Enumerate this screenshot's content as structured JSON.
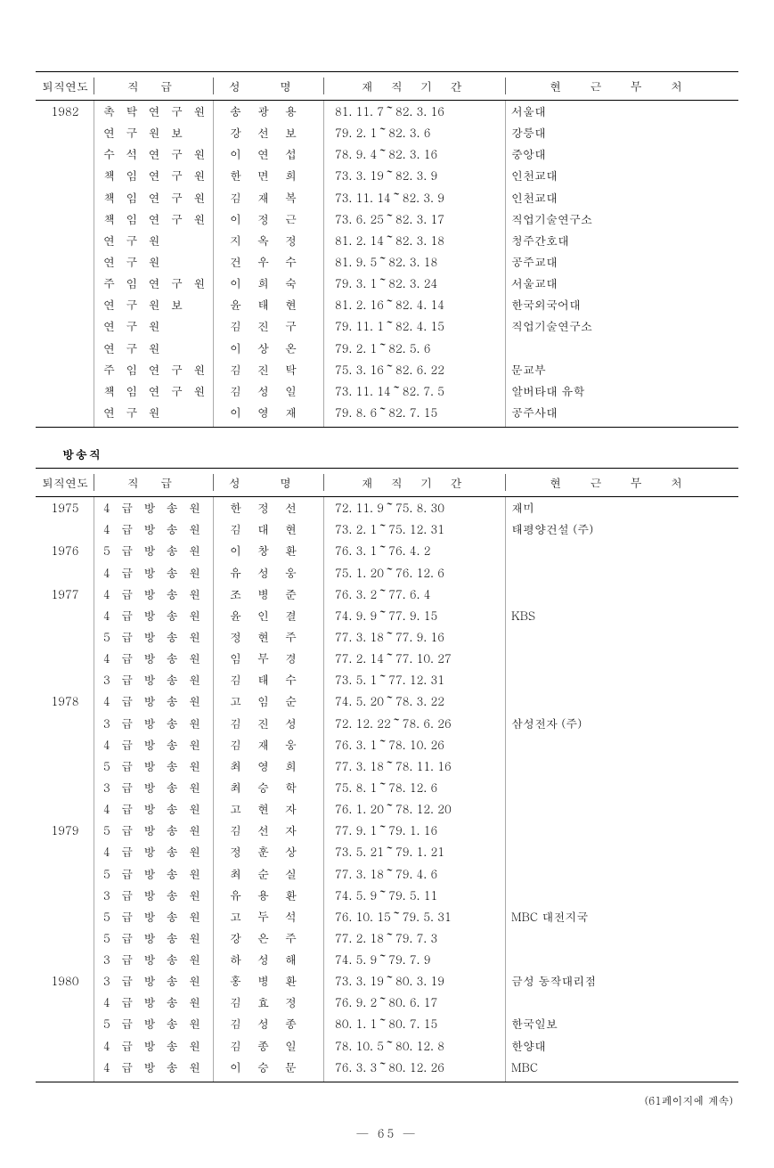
{
  "headers": {
    "year": "퇴직연도",
    "rank": "직    급",
    "name": "성    명",
    "period": "재 직 기 간",
    "place": "현  근  무  처"
  },
  "section2_label": "방송직",
  "footer_note": "(61페이지에 계속)",
  "page_number": "— 65 —",
  "table1": [
    {
      "year": "1982",
      "rank": "촉 탁 연 구 원",
      "name": "송광용",
      "period": "81. 11.  7～82.  3. 16",
      "place": "서울대"
    },
    {
      "year": "",
      "rank": "연 구 원 보",
      "name": "강선보",
      "period": "79.  2.  1～82.  3.  6",
      "place": "강릉대"
    },
    {
      "year": "",
      "rank": "수 석 연 구 원",
      "name": "이연섭",
      "period": "78.  9.  4～82.  3. 16",
      "place": "중앙대"
    },
    {
      "year": "",
      "rank": "책 임 연 구 원",
      "name": "한면희",
      "period": "73.  3. 19～82.  3.  9",
      "place": "인천교대"
    },
    {
      "year": "",
      "rank": "책 임 연 구 원",
      "name": "김재복",
      "period": "73. 11. 14～82.  3.  9",
      "place": "인천교대"
    },
    {
      "year": "",
      "rank": "책 임 연 구 원",
      "name": "이정근",
      "period": "73.  6. 25～82.  3. 17",
      "place": "직업기술연구소"
    },
    {
      "year": "",
      "rank": "연  구  원",
      "name": "지옥정",
      "period": "81.  2. 14～82.  3. 18",
      "place": "청주간호대"
    },
    {
      "year": "",
      "rank": "연  구  원",
      "name": "건우수",
      "period": "81.  9.  5～82.  3. 18",
      "place": "공주교대"
    },
    {
      "year": "",
      "rank": "주 임 연 구 원",
      "name": "이희숙",
      "period": "79.  3.  1～82.  3. 24",
      "place": "서울교대"
    },
    {
      "year": "",
      "rank": "연 구 원 보",
      "name": "윤태현",
      "period": "81.  2. 16～82.  4. 14",
      "place": "한국외국어대"
    },
    {
      "year": "",
      "rank": "연  구  원",
      "name": "김진구",
      "period": "79. 11.  1～82.  4. 15",
      "place": "직업기술연구소"
    },
    {
      "year": "",
      "rank": "연  구  원",
      "name": "이상온",
      "period": "79.  2.  1～82.  5.  6",
      "place": ""
    },
    {
      "year": "",
      "rank": "주 임 연 구 원",
      "name": "김진탁",
      "period": "75.  3. 16～82.  6. 22",
      "place": "문교부"
    },
    {
      "year": "",
      "rank": "책 임 연 구 원",
      "name": "김성일",
      "period": "73. 11. 14～82.  7.  5",
      "place": "알버타대 유학"
    },
    {
      "year": "",
      "rank": "연  구  원",
      "name": "이영재",
      "period": "79.  8.  6～82.  7. 15",
      "place": "공주사대"
    }
  ],
  "table2": [
    {
      "year": "1975",
      "rank": "4 급 방 송 원",
      "name": "한정선",
      "period": "72. 11.  9～75.  8. 30",
      "place": "재미"
    },
    {
      "year": "",
      "rank": "4 급 방 송 원",
      "name": "김대현",
      "period": "73.  2.  1～75. 12. 31",
      "place": "태평양건설 (주)"
    },
    {
      "year": "1976",
      "rank": "5 급 방 송 원",
      "name": "이창환",
      "period": "76.  3.  1～76.  4.  2",
      "place": "",
      "bullet": true
    },
    {
      "year": "",
      "rank": "4 급 방 송 원",
      "name": "유성웅",
      "period": "75.  1. 20～76. 12.  6",
      "place": ""
    },
    {
      "year": "1977",
      "rank": "4 급 방 송 원",
      "name": "조병준",
      "period": "76.  3.  2～77.  6.  4",
      "place": ""
    },
    {
      "year": "",
      "rank": "4 급 방 송 원",
      "name": "윤인결",
      "period": "74.  9.  9～77.  9. 15",
      "place": "KBS"
    },
    {
      "year": "",
      "rank": "5 급 방 송 원",
      "name": "정현주",
      "period": "77.  3. 18～77.  9. 16",
      "place": ""
    },
    {
      "year": "",
      "rank": "4 급 방 송 원",
      "name": "임무경",
      "period": "77.  2. 14～77. 10. 27",
      "place": ""
    },
    {
      "year": "",
      "rank": "3 급 방 송 원",
      "name": "김태수",
      "period": "73.  5.  1～77. 12. 31",
      "place": ""
    },
    {
      "year": "1978",
      "rank": "4 급 방 송 원",
      "name": "고임순",
      "period": "74.  5. 20～78.  3. 22",
      "place": ""
    },
    {
      "year": "",
      "rank": "3 급 방 송 원",
      "name": "김진성",
      "period": "72. 12. 22～78.  6. 26",
      "place": "삼성전자 (주)"
    },
    {
      "year": "",
      "rank": "4 급 방 송 원",
      "name": "김재웅",
      "period": "76.  3.  1～78. 10. 26",
      "place": ""
    },
    {
      "year": "",
      "rank": "5 급 방 송 원",
      "name": "최영희",
      "period": "77.  3. 18～78. 11. 16",
      "place": ""
    },
    {
      "year": "",
      "rank": "3 급 방 송 원",
      "name": "최승학",
      "period": "75.  8.  1～78. 12.  6",
      "place": ""
    },
    {
      "year": "",
      "rank": "4 급 방 송 원",
      "name": "고현자",
      "period": "76.  1. 20～78. 12. 20",
      "place": ""
    },
    {
      "year": "1979",
      "rank": "5 급 방 송 원",
      "name": "김선자",
      "period": "77.  9.  1～79.  1. 16",
      "place": ""
    },
    {
      "year": "",
      "rank": "4 급 방 송 원",
      "name": "정훈상",
      "period": "73.  5. 21～79.  1. 21",
      "place": ""
    },
    {
      "year": "",
      "rank": "5 급 방 송 원",
      "name": "최순실",
      "period": "77.  3. 18～79.  4.  6",
      "place": ""
    },
    {
      "year": "",
      "rank": "3 급 방 송 원",
      "name": "유용환",
      "period": "74.  5.  9～79.  5. 11",
      "place": ""
    },
    {
      "year": "",
      "rank": "5 급 방 송 원",
      "name": "고두석",
      "period": "76. 10. 15～79.  5. 31",
      "place": "MBC 대전지국"
    },
    {
      "year": "",
      "rank": "5 급 방 송 원",
      "name": "강은주",
      "period": "77.  2. 18～79.  7.  3",
      "place": ""
    },
    {
      "year": "",
      "rank": "3 급 방 송 원",
      "name": "하성해",
      "period": "74.  5.  9～79.  7.  9",
      "place": ""
    },
    {
      "year": "1980",
      "rank": "3 급 방 송 원",
      "name": "홍병환",
      "period": "73.  3. 19～80.  3. 19",
      "place": "금성 동작대리점"
    },
    {
      "year": "",
      "rank": "4 급 방 송 원",
      "name": "김효정",
      "period": "76.  9.  2～80.  6. 17",
      "place": ""
    },
    {
      "year": "",
      "rank": "5 급 방 송 원",
      "name": "김성종",
      "period": "80.  1.  1～80.  7. 15",
      "place": "한국일보"
    },
    {
      "year": "",
      "rank": "4 급 방 송 원",
      "name": "김종일",
      "period": "78. 10.  5～80. 12.  8",
      "place": "한양대"
    },
    {
      "year": "",
      "rank": "4 급 방 송 원",
      "name": "이승문",
      "period": "76.  3.  3～80. 12. 26",
      "place": "MBC"
    }
  ]
}
